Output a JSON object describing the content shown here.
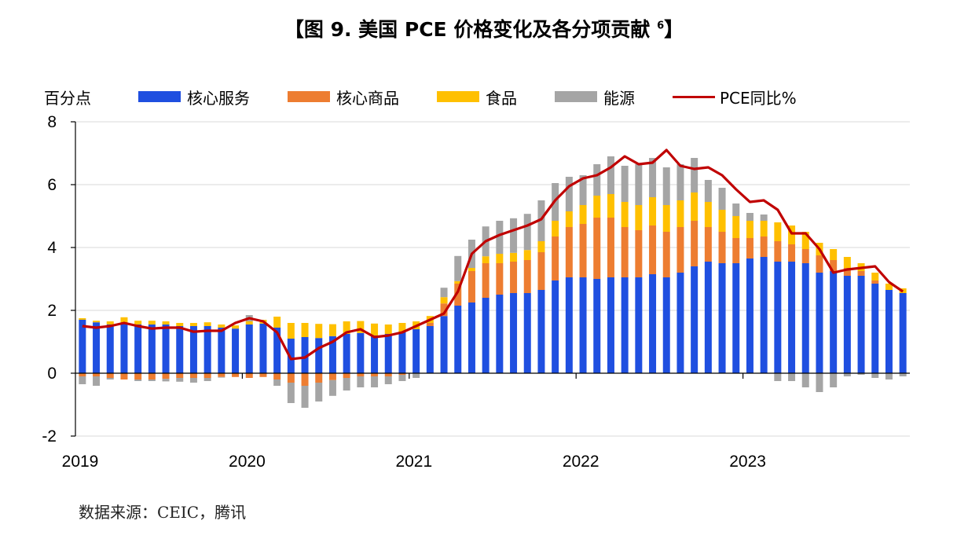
{
  "title": "【图 9. 美国 PCE 价格变化及各分项贡献",
  "title_footnote": "6",
  "title_end": "】",
  "source": "数据来源：CEIC，腾讯",
  "chart_data": {
    "type": "bar",
    "stacked": true,
    "ylabel": "百分点",
    "ylim": [
      -2,
      8
    ],
    "yticks": [
      -2,
      0,
      2,
      4,
      6,
      8
    ],
    "xticks": [
      "2019",
      "2020",
      "2021",
      "2022",
      "2023"
    ],
    "grid": true,
    "legend_position": "top",
    "categories": [
      "2019-01",
      "2019-02",
      "2019-03",
      "2019-04",
      "2019-05",
      "2019-06",
      "2019-07",
      "2019-08",
      "2019-09",
      "2019-10",
      "2019-11",
      "2019-12",
      "2020-01",
      "2020-02",
      "2020-03",
      "2020-04",
      "2020-05",
      "2020-06",
      "2020-07",
      "2020-08",
      "2020-09",
      "2020-10",
      "2020-11",
      "2020-12",
      "2021-01",
      "2021-02",
      "2021-03",
      "2021-04",
      "2021-05",
      "2021-06",
      "2021-07",
      "2021-08",
      "2021-09",
      "2021-10",
      "2021-11",
      "2021-12",
      "2022-01",
      "2022-02",
      "2022-03",
      "2022-04",
      "2022-05",
      "2022-06",
      "2022-07",
      "2022-08",
      "2022-09",
      "2022-10",
      "2022-11",
      "2022-12",
      "2023-01",
      "2023-02",
      "2023-03",
      "2023-04",
      "2023-05",
      "2023-06",
      "2023-07",
      "2023-08",
      "2023-09",
      "2023-10",
      "2023-11",
      "2023-12"
    ],
    "series": [
      {
        "name": "核心服务",
        "color": "#1F4FE0",
        "values": [
          1.7,
          1.62,
          1.55,
          1.58,
          1.55,
          1.55,
          1.55,
          1.5,
          1.5,
          1.5,
          1.45,
          1.42,
          1.55,
          1.58,
          1.45,
          1.1,
          1.15,
          1.12,
          1.18,
          1.25,
          1.28,
          1.2,
          1.25,
          1.3,
          1.4,
          1.5,
          1.82,
          2.15,
          2.25,
          2.4,
          2.5,
          2.55,
          2.55,
          2.65,
          2.95,
          3.05,
          3.05,
          3.0,
          3.05,
          3.05,
          3.05,
          3.15,
          3.05,
          3.2,
          3.4,
          3.55,
          3.5,
          3.5,
          3.65,
          3.7,
          3.55,
          3.55,
          3.5,
          3.2,
          3.25,
          3.1,
          3.1,
          2.85,
          2.65,
          2.55
        ]
      },
      {
        "name": "核心商品",
        "color": "#ED7D31",
        "values": [
          -0.1,
          -0.1,
          -0.15,
          -0.2,
          -0.2,
          -0.2,
          -0.18,
          -0.15,
          -0.15,
          -0.15,
          -0.12,
          -0.12,
          -0.15,
          -0.12,
          -0.2,
          -0.3,
          -0.4,
          -0.3,
          -0.22,
          -0.15,
          -0.1,
          -0.1,
          -0.1,
          -0.05,
          0.0,
          0.1,
          0.4,
          0.7,
          1.0,
          1.1,
          1.0,
          1.0,
          1.05,
          1.2,
          1.4,
          1.6,
          1.7,
          1.95,
          1.9,
          1.6,
          1.5,
          1.55,
          1.45,
          1.45,
          1.45,
          1.1,
          1.0,
          0.8,
          0.65,
          0.65,
          0.65,
          0.55,
          0.45,
          0.55,
          0.35,
          0.25,
          0.15,
          0.1,
          0.0,
          0.0
        ]
      },
      {
        "name": "食品",
        "color": "#FFC000",
        "values": [
          0.05,
          0.05,
          0.1,
          0.2,
          0.12,
          0.12,
          0.1,
          0.1,
          0.1,
          0.12,
          0.1,
          0.1,
          0.1,
          0.12,
          0.35,
          0.5,
          0.45,
          0.45,
          0.38,
          0.4,
          0.38,
          0.38,
          0.3,
          0.3,
          0.25,
          0.22,
          0.2,
          0.08,
          0.1,
          0.22,
          0.3,
          0.28,
          0.32,
          0.35,
          0.5,
          0.5,
          0.6,
          0.7,
          0.75,
          0.8,
          0.8,
          0.9,
          0.85,
          0.85,
          0.9,
          0.8,
          0.7,
          0.7,
          0.55,
          0.5,
          0.6,
          0.6,
          0.55,
          0.4,
          0.35,
          0.35,
          0.25,
          0.25,
          0.2,
          0.15
        ]
      },
      {
        "name": "能源",
        "color": "#A5A5A5",
        "values": [
          -0.25,
          -0.3,
          -0.05,
          0.0,
          -0.05,
          -0.05,
          -0.08,
          -0.12,
          -0.15,
          -0.1,
          -0.02,
          0.0,
          0.2,
          0.0,
          -0.2,
          -0.65,
          -0.7,
          -0.6,
          -0.5,
          -0.4,
          -0.35,
          -0.35,
          -0.25,
          -0.2,
          -0.15,
          0.0,
          0.3,
          0.8,
          0.9,
          0.95,
          1.05,
          1.1,
          1.15,
          1.3,
          1.2,
          1.1,
          0.95,
          1.0,
          1.2,
          1.15,
          1.3,
          1.25,
          1.2,
          1.15,
          1.1,
          0.7,
          0.7,
          0.4,
          0.25,
          0.2,
          -0.25,
          -0.25,
          -0.45,
          -0.6,
          -0.45,
          -0.1,
          -0.05,
          -0.15,
          -0.2,
          -0.1
        ]
      }
    ],
    "line": {
      "name": "PCE同比%",
      "color": "#C00000",
      "values": [
        1.5,
        1.45,
        1.5,
        1.6,
        1.5,
        1.42,
        1.45,
        1.45,
        1.32,
        1.35,
        1.35,
        1.6,
        1.75,
        1.65,
        1.3,
        0.45,
        0.5,
        0.8,
        1.0,
        1.3,
        1.4,
        1.15,
        1.2,
        1.3,
        1.5,
        1.7,
        1.9,
        2.6,
        3.8,
        4.2,
        4.4,
        4.55,
        4.7,
        4.9,
        5.5,
        5.95,
        6.2,
        6.3,
        6.55,
        6.9,
        6.65,
        6.7,
        7.1,
        6.6,
        6.5,
        6.55,
        6.3,
        5.85,
        5.45,
        5.5,
        5.2,
        4.45,
        4.45,
        3.95,
        3.2,
        3.3,
        3.35,
        3.4,
        2.9,
        2.6
      ]
    }
  }
}
